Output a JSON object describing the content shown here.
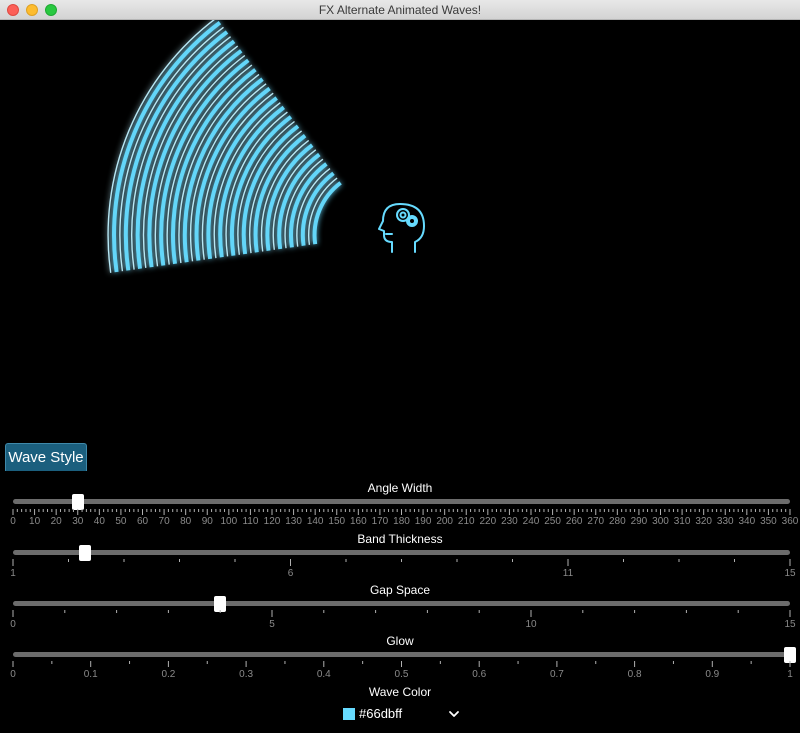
{
  "window": {
    "title": "FX Alternate Animated Waves!"
  },
  "tab": {
    "label": "Wave Style"
  },
  "sliders": {
    "angle_width": {
      "label": "Angle Width",
      "value": 30,
      "min": 0,
      "max": 360,
      "tick_labels": [
        "0",
        "10",
        "20",
        "30",
        "40",
        "50",
        "60",
        "70",
        "80",
        "90",
        "100",
        "110",
        "120",
        "130",
        "140",
        "150",
        "160",
        "170",
        "180",
        "190",
        "200",
        "210",
        "220",
        "230",
        "240",
        "250",
        "260",
        "270",
        "280",
        "290",
        "300",
        "310",
        "320",
        "330",
        "340",
        "350",
        "360"
      ]
    },
    "band_thickness": {
      "label": "Band Thickness",
      "value": 2.3,
      "min": 1,
      "max": 15,
      "tick_labels": [
        "1",
        "6",
        "11",
        "15"
      ]
    },
    "gap_space": {
      "label": "Gap Space",
      "value": 4,
      "min": 0,
      "max": 15,
      "tick_labels": [
        "0",
        "5",
        "10",
        "15"
      ]
    },
    "glow": {
      "label": "Glow",
      "value": 1,
      "min": 0,
      "max": 1,
      "tick_labels": [
        "0",
        "0.1",
        "0.2",
        "0.3",
        "0.4",
        "0.5",
        "0.6",
        "0.7",
        "0.8",
        "0.9",
        "1"
      ]
    }
  },
  "wave_color": {
    "label": "Wave Color",
    "value": "#66dbff",
    "color": "#66dbff"
  },
  "icons": {
    "center": "head-gears-icon",
    "dropdown": "chevron-down-icon"
  }
}
